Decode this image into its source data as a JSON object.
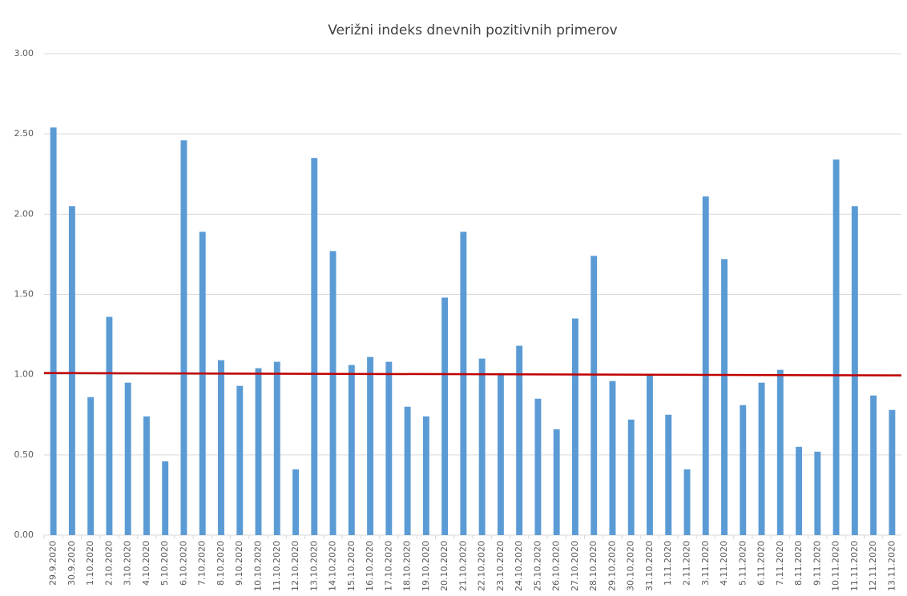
{
  "chart_data": {
    "type": "bar",
    "title": "Verižni indeks dnevnih pozitivnih primerov",
    "categories": [
      "29.9.2020",
      "30.9.2020",
      "1.10.2020",
      "2.10.2020",
      "3.10.2020",
      "4.10.2020",
      "5.10.2020",
      "6.10.2020",
      "7.10.2020",
      "8.10.2020",
      "9.10.2020",
      "10.10.2020",
      "11.10.2020",
      "12.10.2020",
      "13.10.2020",
      "14.10.2020",
      "15.10.2020",
      "16.10.2020",
      "17.10.2020",
      "18.10.2020",
      "19.10.2020",
      "20.10.2020",
      "21.10.2020",
      "22.10.2020",
      "23.10.2020",
      "24.10.2020",
      "25.10.2020",
      "26.10.2020",
      "27.10.2020",
      "28.10.2020",
      "29.10.2020",
      "30.10.2020",
      "31.10.2020",
      "1.11.2020",
      "2.11.2020",
      "3.11.2020",
      "4.11.2020",
      "5.11.2020",
      "6.11.2020",
      "7.11.2020",
      "8.11.2020",
      "9.11.2020",
      "10.11.2020",
      "11.11.2020",
      "12.11.2020",
      "13.11.2020"
    ],
    "values": [
      2.54,
      2.05,
      0.86,
      1.36,
      0.95,
      0.74,
      0.46,
      2.46,
      1.89,
      1.09,
      0.93,
      1.04,
      1.08,
      0.41,
      2.35,
      1.77,
      1.06,
      1.11,
      1.08,
      0.8,
      0.74,
      1.48,
      1.89,
      1.1,
      1.01,
      1.18,
      0.85,
      0.66,
      1.35,
      1.74,
      0.96,
      0.72,
      1.0,
      0.75,
      0.41,
      2.11,
      1.72,
      0.81,
      0.95,
      1.03,
      0.55,
      0.52,
      2.34,
      2.05,
      0.87,
      0.78
    ],
    "color": "#5b9bd5",
    "trend": {
      "color": "#c00000",
      "values": [
        1.01,
        0.995
      ]
    },
    "ylim": [
      0,
      3
    ],
    "yticks": [
      {
        "value": 0,
        "label": "0.00"
      },
      {
        "value": 0.5,
        "label": "0.50"
      },
      {
        "value": 1,
        "label": "1.00"
      },
      {
        "value": 1.5,
        "label": "1.50"
      },
      {
        "value": 2,
        "label": "2.00"
      },
      {
        "value": 2.5,
        "label": "2.50"
      },
      {
        "value": 3,
        "label": "3.00"
      }
    ],
    "grid": true
  }
}
